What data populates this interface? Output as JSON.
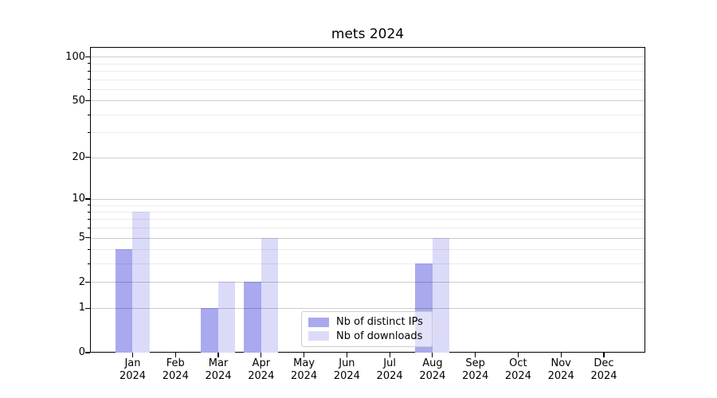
{
  "figure": {
    "title": "mets 2024"
  },
  "chart_data": {
    "type": "bar",
    "title": "mets 2024",
    "categories": [
      {
        "month": "Jan",
        "year": "2024"
      },
      {
        "month": "Feb",
        "year": "2024"
      },
      {
        "month": "Mar",
        "year": "2024"
      },
      {
        "month": "Apr",
        "year": "2024"
      },
      {
        "month": "May",
        "year": "2024"
      },
      {
        "month": "Jun",
        "year": "2024"
      },
      {
        "month": "Jul",
        "year": "2024"
      },
      {
        "month": "Aug",
        "year": "2024"
      },
      {
        "month": "Sep",
        "year": "2024"
      },
      {
        "month": "Oct",
        "year": "2024"
      },
      {
        "month": "Nov",
        "year": "2024"
      },
      {
        "month": "Dec",
        "year": "2024"
      }
    ],
    "series": [
      {
        "name": "Nb of distinct IPs",
        "color": "#a9a9ef",
        "values": [
          4,
          0,
          1,
          2,
          0,
          0,
          0,
          3,
          0,
          0,
          0,
          0
        ]
      },
      {
        "name": "Nb of downloads",
        "color": "#dbdbf9",
        "values": [
          8,
          0,
          2,
          5,
          0,
          0,
          0,
          5,
          0,
          0,
          0,
          0
        ]
      }
    ],
    "yscale": "log1p",
    "ylim": [
      0,
      117
    ],
    "yticks": [
      0,
      1,
      2,
      5,
      10,
      20,
      50,
      100
    ],
    "yticks_minor": [
      3,
      4,
      6,
      7,
      8,
      9,
      30,
      40,
      60,
      70,
      80,
      90
    ],
    "grid": "on",
    "legend_position": "lower center"
  }
}
